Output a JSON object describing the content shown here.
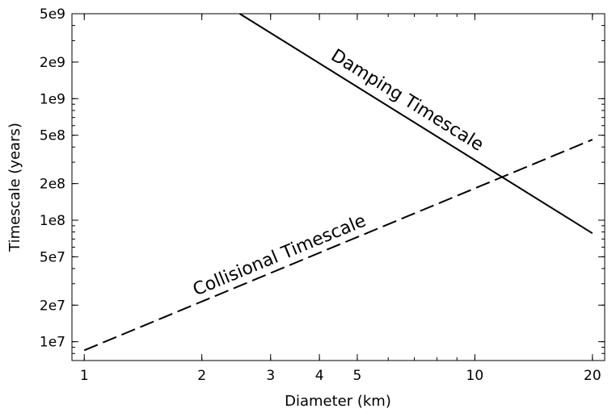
{
  "chart_data": {
    "type": "line",
    "xlabel": "Diameter (km)",
    "ylabel": "Timescale (years)",
    "xscale": "log",
    "yscale": "log",
    "xlim": [
      0.93,
      21.5
    ],
    "ylim": [
      7000000.0,
      5000000000.0
    ],
    "x_ticks": [
      {
        "value": 1,
        "label": "1"
      },
      {
        "value": 2,
        "label": "2"
      },
      {
        "value": 3,
        "label": "3"
      },
      {
        "value": 4,
        "label": "4"
      },
      {
        "value": 5,
        "label": "5"
      },
      {
        "value": 10,
        "label": "10"
      },
      {
        "value": 20,
        "label": "20"
      }
    ],
    "y_ticks": [
      {
        "value": 10000000.0,
        "label": "1e7"
      },
      {
        "value": 20000000.0,
        "label": "2e7"
      },
      {
        "value": 50000000.0,
        "label": "5e7"
      },
      {
        "value": 100000000.0,
        "label": "1e8"
      },
      {
        "value": 200000000.0,
        "label": "2e8"
      },
      {
        "value": 500000000.0,
        "label": "5e8"
      },
      {
        "value": 1000000000.0,
        "label": "1e9"
      },
      {
        "value": 2000000000.0,
        "label": "2e9"
      },
      {
        "value": 5000000000.0,
        "label": "5e9"
      }
    ],
    "grid": false,
    "series": [
      {
        "name": "Damping Timescale",
        "style": "solid",
        "x": [
          2.5,
          20
        ],
        "y": [
          5000000000.0,
          78000000.0
        ]
      },
      {
        "name": "Collisional Timescale",
        "style": "dashed",
        "x": [
          1,
          20
        ],
        "y": [
          8500000.0,
          460000000.0
        ]
      }
    ]
  }
}
